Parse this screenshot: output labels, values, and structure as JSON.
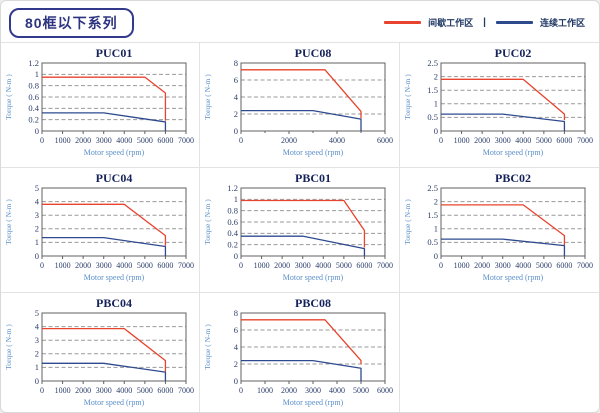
{
  "header": {
    "series_title": "80框以下系列"
  },
  "legend": {
    "intermittent_label": "间歇工作区",
    "continuous_label": "连续工作区",
    "separator": "|",
    "intermittent_color": "#e8432c",
    "continuous_color": "#2e4a8f"
  },
  "colors": {
    "curve_red": "#e8432c",
    "curve_blue": "#44549b",
    "grid_gray": "#999999",
    "plot_border": "#606060",
    "tick_text": "#2c3e6b",
    "axis_label_blue": "#5b8fc9",
    "title_navy": "#16225a"
  },
  "chart_data": [
    {
      "type": "line",
      "title": "PUC01",
      "xlabel": "Motor speed (rpm)",
      "ylabel": "Torque ( N-m )",
      "xlim": [
        0,
        7000
      ],
      "ylim": [
        0,
        1.2
      ],
      "xticks": [
        0,
        1000,
        2000,
        3000,
        4000,
        5000,
        6000,
        7000
      ],
      "yticks": [
        0,
        0.2,
        0.4,
        0.6,
        0.8,
        1,
        1.2
      ],
      "grid": "horizontal-dashed",
      "legend_position": "none",
      "series": [
        {
          "name": "间歇工作区",
          "points": [
            [
              0,
              0.95
            ],
            [
              5000,
              0.95
            ],
            [
              6000,
              0.67
            ],
            [
              6000,
              0.18
            ]
          ]
        },
        {
          "name": "连续工作区",
          "points": [
            [
              0,
              0.32
            ],
            [
              3000,
              0.32
            ],
            [
              6000,
              0.16
            ],
            [
              6000,
              0
            ]
          ]
        }
      ]
    },
    {
      "type": "line",
      "title": "PUC08",
      "xlabel": "Motor speed (rpm)",
      "ylabel": "Torque ( N-m )",
      "xlim": [
        0,
        6000
      ],
      "ylim": [
        0,
        8
      ],
      "xticks": [
        0,
        2000,
        4000,
        6000
      ],
      "xminorticks": [
        1000,
        3000,
        5000
      ],
      "yticks": [
        0,
        2,
        4,
        6,
        8
      ],
      "grid": "horizontal-dashed",
      "legend_position": "none",
      "series": [
        {
          "name": "间歇工作区",
          "points": [
            [
              0,
              7.2
            ],
            [
              3500,
              7.2
            ],
            [
              5000,
              2.3
            ],
            [
              5000,
              1.5
            ]
          ]
        },
        {
          "name": "连续工作区",
          "points": [
            [
              0,
              2.4
            ],
            [
              3000,
              2.4
            ],
            [
              5000,
              1.4
            ],
            [
              5000,
              0
            ]
          ]
        }
      ]
    },
    {
      "type": "line",
      "title": "PUC02",
      "xlabel": "Motor speed (rpm)",
      "ylabel": "Torque ( N-m )",
      "xlim": [
        0,
        7000
      ],
      "ylim": [
        0,
        2.5
      ],
      "xticks": [
        0,
        1000,
        2000,
        3000,
        4000,
        5000,
        6000,
        7000
      ],
      "yticks": [
        0,
        0.5,
        1,
        1.5,
        2,
        2.5
      ],
      "grid": "horizontal-dashed",
      "legend_position": "none",
      "series": [
        {
          "name": "间歇工作区",
          "points": [
            [
              0,
              1.9
            ],
            [
              4000,
              1.9
            ],
            [
              6000,
              0.62
            ],
            [
              6000,
              0.4
            ]
          ]
        },
        {
          "name": "连续工作区",
          "points": [
            [
              0,
              0.62
            ],
            [
              3000,
              0.62
            ],
            [
              6000,
              0.35
            ],
            [
              6000,
              0
            ]
          ]
        }
      ]
    },
    {
      "type": "line",
      "title": "PUC04",
      "xlabel": "Motor speed (rpm)",
      "ylabel": "Torque ( N-m )",
      "xlim": [
        0,
        7000
      ],
      "ylim": [
        0,
        5
      ],
      "xticks": [
        0,
        1000,
        2000,
        3000,
        4000,
        5000,
        6000,
        7000
      ],
      "yticks": [
        0,
        1,
        2,
        3,
        4,
        5
      ],
      "grid": "horizontal-dashed",
      "legend_position": "none",
      "series": [
        {
          "name": "间歇工作区",
          "points": [
            [
              0,
              3.8
            ],
            [
              4000,
              3.8
            ],
            [
              6000,
              1.5
            ],
            [
              6000,
              0.75
            ]
          ]
        },
        {
          "name": "连续工作区",
          "points": [
            [
              0,
              1.35
            ],
            [
              3000,
              1.35
            ],
            [
              6000,
              0.7
            ],
            [
              6000,
              0
            ]
          ]
        }
      ]
    },
    {
      "type": "line",
      "title": "PBC01",
      "xlabel": "Motor speed (rpm)",
      "ylabel": "Torque ( N-m )",
      "xlim": [
        0,
        7000
      ],
      "ylim": [
        0,
        1.2
      ],
      "xticks": [
        0,
        1000,
        2000,
        3000,
        4000,
        5000,
        6000,
        7000
      ],
      "yticks": [
        0,
        0.2,
        0.4,
        0.6,
        0.8,
        1,
        1.2
      ],
      "grid": "horizontal-dashed",
      "legend_position": "none",
      "series": [
        {
          "name": "间歇工作区",
          "points": [
            [
              0,
              0.98
            ],
            [
              5000,
              0.98
            ],
            [
              6000,
              0.45
            ],
            [
              6000,
              0.15
            ]
          ]
        },
        {
          "name": "连续工作区",
          "points": [
            [
              0,
              0.35
            ],
            [
              3000,
              0.35
            ],
            [
              6000,
              0.13
            ],
            [
              6000,
              0
            ]
          ]
        }
      ]
    },
    {
      "type": "line",
      "title": "PBC02",
      "xlabel": "Motor speed (rpm)",
      "ylabel": "Torque ( N-m )",
      "xlim": [
        0,
        7000
      ],
      "ylim": [
        0,
        2.5
      ],
      "xticks": [
        0,
        1000,
        2000,
        3000,
        4000,
        5000,
        6000,
        7000
      ],
      "yticks": [
        0,
        0.5,
        1,
        1.5,
        2,
        2.5
      ],
      "grid": "horizontal-dashed",
      "legend_position": "none",
      "series": [
        {
          "name": "间歇工作区",
          "points": [
            [
              0,
              1.88
            ],
            [
              4000,
              1.88
            ],
            [
              6000,
              0.75
            ],
            [
              6000,
              0.4
            ]
          ]
        },
        {
          "name": "连续工作区",
          "points": [
            [
              0,
              0.62
            ],
            [
              3000,
              0.62
            ],
            [
              6000,
              0.38
            ],
            [
              6000,
              0
            ]
          ]
        }
      ]
    },
    {
      "type": "line",
      "title": "PBC04",
      "xlabel": "Motor speed (rpm)",
      "ylabel": "Torque ( N-m )",
      "xlim": [
        0,
        7000
      ],
      "ylim": [
        0,
        5
      ],
      "xticks": [
        0,
        1000,
        2000,
        3000,
        4000,
        5000,
        6000,
        7000
      ],
      "yticks": [
        0,
        1,
        2,
        3,
        4,
        5
      ],
      "grid": "horizontal-dashed",
      "legend_position": "none",
      "series": [
        {
          "name": "间歇工作区",
          "points": [
            [
              0,
              3.85
            ],
            [
              4000,
              3.85
            ],
            [
              6000,
              1.5
            ],
            [
              6000,
              0.7
            ]
          ]
        },
        {
          "name": "连续工作区",
          "points": [
            [
              0,
              1.3
            ],
            [
              3000,
              1.3
            ],
            [
              6000,
              0.65
            ],
            [
              6000,
              0
            ]
          ]
        }
      ]
    },
    {
      "type": "line",
      "title": "PBC08",
      "xlabel": "Motor speed (rpm)",
      "ylabel": "Torque ( N-m )",
      "xlim": [
        0,
        6000
      ],
      "ylim": [
        0,
        8
      ],
      "xticks": [
        0,
        1000,
        2000,
        3000,
        4000,
        5000,
        6000
      ],
      "yticks": [
        0,
        2,
        4,
        6,
        8
      ],
      "grid": "horizontal-dashed",
      "legend_position": "none",
      "series": [
        {
          "name": "间歇工作区",
          "points": [
            [
              0,
              7.2
            ],
            [
              3500,
              7.2
            ],
            [
              5000,
              2.4
            ],
            [
              5000,
              2.0
            ]
          ]
        },
        {
          "name": "连续工作区",
          "points": [
            [
              0,
              2.4
            ],
            [
              3000,
              2.4
            ],
            [
              5000,
              1.5
            ],
            [
              5000,
              0
            ]
          ]
        }
      ]
    }
  ]
}
